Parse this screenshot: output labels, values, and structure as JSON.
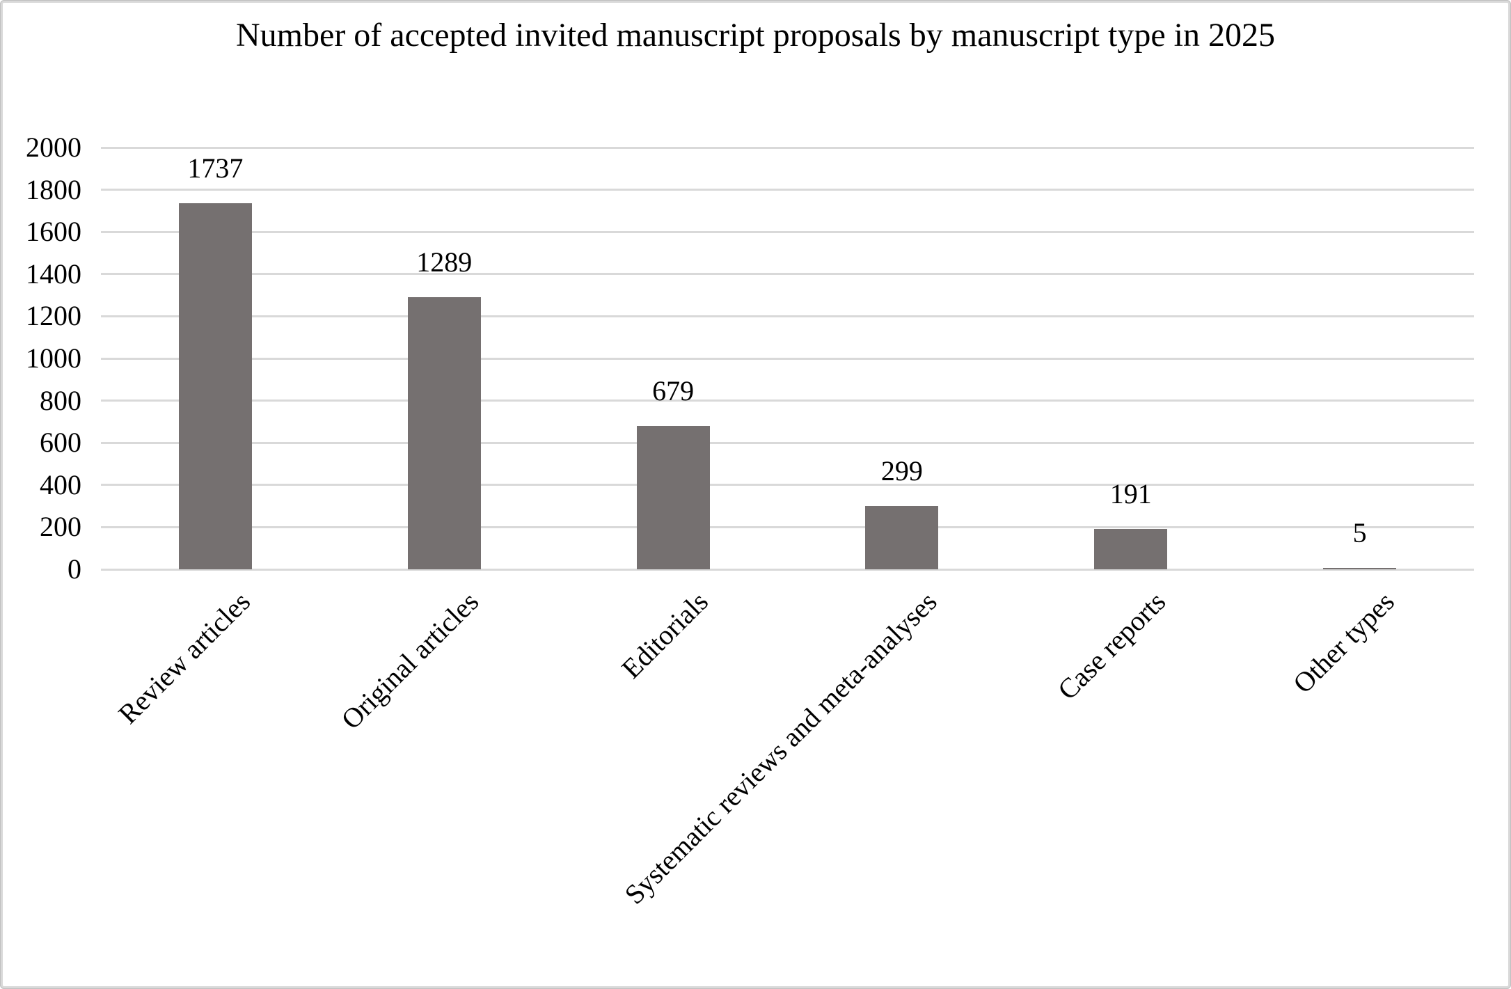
{
  "chart_data": {
    "type": "bar",
    "title": "Number of accepted invited manuscript proposals by manuscript type in 2025",
    "categories": [
      "Review articles",
      "Original articles",
      "Editorials",
      "Systematic reviews and meta-analyses",
      "Case reports",
      "Other types"
    ],
    "values": [
      1737,
      1289,
      679,
      299,
      191,
      5
    ],
    "data_labels": [
      "1737",
      "1289",
      "679",
      "299",
      "191",
      "5"
    ],
    "xlabel": "",
    "ylabel": "",
    "ylim": [
      0,
      2000
    ],
    "ytick_step": 200,
    "ytick_labels": [
      "0",
      "200",
      "400",
      "600",
      "800",
      "1000",
      "1200",
      "1400",
      "1600",
      "1800",
      "2000"
    ],
    "grid": "horizontal",
    "legend_position": "none",
    "bar_color": "#757070",
    "gridline_color": "#d9d9d9",
    "text_color": "#000000",
    "background_color": "#ffffff",
    "frame_color": "#d9d9d9"
  }
}
